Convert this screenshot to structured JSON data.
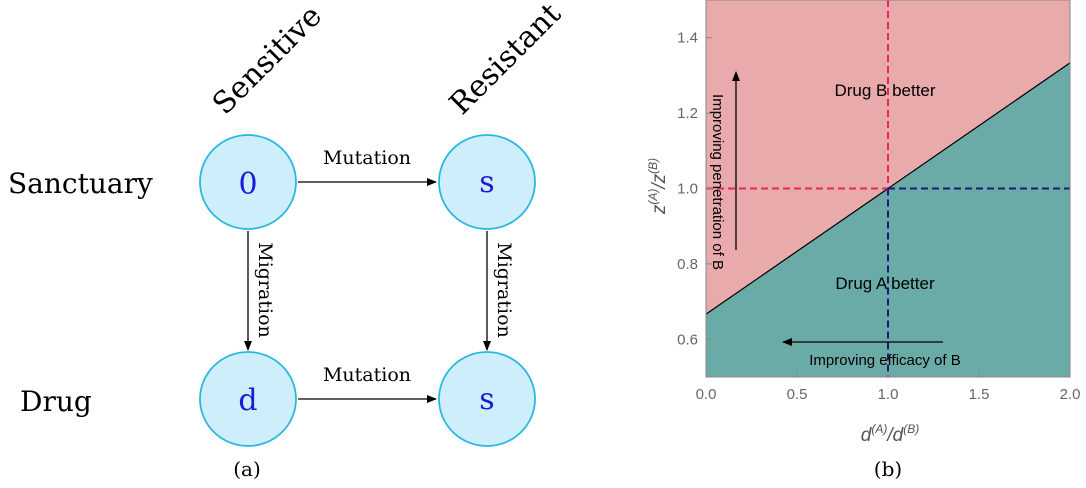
{
  "panel_a": {
    "caption": "(a)",
    "col_headers": [
      "Sensitive",
      "Resistant"
    ],
    "row_headers": [
      "Sanctuary",
      "Drug"
    ],
    "nodes": [
      "0",
      "s",
      "d",
      "s"
    ],
    "edges": {
      "top": "Mutation",
      "bottom": "Mutation",
      "left": "Migration",
      "right": "Migration"
    }
  },
  "panel_b": {
    "caption": "(b)",
    "xlabel_base": "d",
    "xlabel_sup_num": "(A)",
    "xlabel_sup_den": "(B)",
    "ylabel_base": "z",
    "ylabel_sup_num": "(A)",
    "ylabel_sup_den": "(B)",
    "region_top_label": "Drug B better",
    "region_bottom_label": "Drug A better",
    "arrow_up_label": "Improving penetration of B",
    "arrow_left_label": "Improving efficacy of B",
    "colors": {
      "region_b": "#e8aaaa",
      "region_a": "#6aaba7",
      "pink_dash": "#e8265a",
      "navy_dash": "#1a1a7a"
    }
  },
  "chart_data": {
    "type": "area",
    "xlim": [
      0.0,
      2.0
    ],
    "ylim": [
      0.5,
      1.5
    ],
    "x_ticks": [
      "0.0",
      "0.5",
      "1.0",
      "1.5",
      "2.0"
    ],
    "y_ticks": [
      "0.6",
      "0.8",
      "1.0",
      "1.2",
      "1.4"
    ],
    "boundary": {
      "x": [
        0.0,
        2.0
      ],
      "y": [
        0.6667,
        1.3333
      ]
    },
    "reference_point": {
      "x": 1.0,
      "y": 1.0
    },
    "grid": false
  }
}
